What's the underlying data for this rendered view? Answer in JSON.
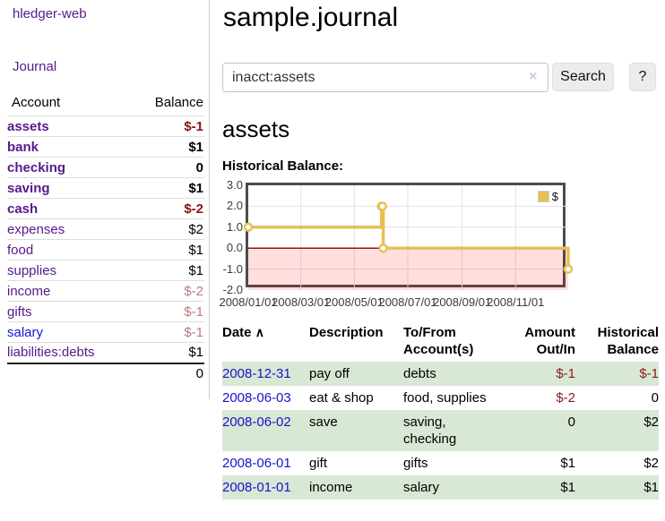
{
  "colors": {
    "link_purple": "#551a8b",
    "link_blue": "#1414d6",
    "negative_strong": "#8b1212",
    "negative_soft": "#bd7b7b",
    "row_stripe_green": "#d8e8d5",
    "chart_series_gold": "#e6c054",
    "chart_negative_region": "rgba(255,0,0,0.13)",
    "chart_zero_line": "#8f1414",
    "chart_grid": "#e2e2e2"
  },
  "sidebar": {
    "brand": "hledger-web",
    "journal_link": "Journal",
    "table": {
      "account_header": "Account",
      "balance_header": "Balance",
      "accounts": [
        {
          "label": "assets",
          "depth": 0,
          "bold": true,
          "balance": "$-1",
          "balance_style": "neg-strong"
        },
        {
          "label": "bank",
          "depth": 1,
          "bold": true,
          "balance": "$1",
          "balance_style": ""
        },
        {
          "label": "checking",
          "depth": 2,
          "bold": true,
          "balance": "0",
          "balance_style": ""
        },
        {
          "label": "saving",
          "depth": 2,
          "bold": true,
          "balance": "$1",
          "balance_style": ""
        },
        {
          "label": "cash",
          "depth": 1,
          "bold": true,
          "balance": "$-2",
          "balance_style": "neg-strong"
        },
        {
          "label": "expenses",
          "depth": 0,
          "bold": false,
          "balance": "$2",
          "balance_style": ""
        },
        {
          "label": "food",
          "depth": 1,
          "bold": false,
          "balance": "$1",
          "balance_style": ""
        },
        {
          "label": "supplies",
          "depth": 1,
          "bold": false,
          "balance": "$1",
          "balance_style": ""
        },
        {
          "label": "income",
          "depth": 0,
          "bold": false,
          "balance": "$-2",
          "balance_style": "neg-soft"
        },
        {
          "label": "gifts",
          "depth": 1,
          "bold": false,
          "balance": "$-1",
          "balance_style": "neg-soft"
        },
        {
          "label": "salary",
          "depth": 1,
          "bold": false,
          "unvisited": true,
          "balance": "$-1",
          "balance_style": "neg-soft"
        },
        {
          "label": "liabilities:debts",
          "depth": 0,
          "bold": false,
          "balance": "$1",
          "balance_style": ""
        }
      ],
      "total": "0"
    }
  },
  "main": {
    "title": "sample.journal",
    "search": {
      "value": "inacct:assets",
      "clear_icon": "×",
      "search_button": "Search",
      "help_button": "?"
    },
    "account_heading": "assets",
    "section_heading": "Historical Balance:"
  },
  "chart_data": {
    "type": "line",
    "style": "step",
    "title": "Historical Balance",
    "x_range": [
      "2008-01-01",
      "2008-12-31"
    ],
    "ylim": [
      -2,
      3
    ],
    "series": [
      {
        "name": "$",
        "color": "#e6c054",
        "marker_fill": "#ffffff",
        "points": [
          [
            "2008-01-01",
            1
          ],
          [
            "2008-06-01",
            2
          ],
          [
            "2008-06-02",
            2
          ],
          [
            "2008-06-03",
            0
          ],
          [
            "2008-12-31",
            -1
          ]
        ]
      }
    ],
    "yticks": [
      {
        "label": "3.0",
        "value": 3
      },
      {
        "label": "2.0",
        "value": 2
      },
      {
        "label": "1.0",
        "value": 1
      },
      {
        "label": "0.0",
        "value": 0
      },
      {
        "label": "-1.0",
        "value": -1
      },
      {
        "label": "-2.0",
        "value": -2
      }
    ],
    "xticks": [
      {
        "label": "2008/01/01",
        "date": "2008-01-01"
      },
      {
        "label": "2008/03/01",
        "date": "2008-03-01"
      },
      {
        "label": "2008/05/01",
        "date": "2008-05-01"
      },
      {
        "label": "2008/07/01",
        "date": "2008-07-01"
      },
      {
        "label": "2008/09/01",
        "date": "2008-09-01"
      },
      {
        "label": "2008/11/01",
        "date": "2008-11-01"
      }
    ],
    "legend": {
      "label": "$",
      "position": "top-right"
    },
    "grid": true,
    "grid_color": "#e2e2e2",
    "negative_region_color": "rgba(255,0,0,0.13)",
    "zero_line_color": "#8f1414"
  },
  "transactions": {
    "sort_icon": "∧",
    "headers": {
      "date": "Date",
      "description": "Description",
      "accounts_line1": "To/From",
      "accounts_line2": "Account(s)",
      "amount_line1": "Amount",
      "amount_line2": "Out/In",
      "balance_line1": "Historical",
      "balance_line2": "Balance"
    },
    "rows": [
      {
        "date": "2008-12-31",
        "description": "pay off",
        "accounts": "debts",
        "amount": "$-1",
        "balance": "$-1",
        "amount_negative": true,
        "balance_negative": true,
        "striped": true
      },
      {
        "date": "2008-06-03",
        "description": "eat & shop",
        "accounts": "food, supplies",
        "amount": "$-2",
        "balance": "0",
        "amount_negative": true,
        "balance_negative": false,
        "striped": false
      },
      {
        "date": "2008-06-02",
        "description": "save",
        "accounts": "saving, checking",
        "amount": "0",
        "balance": "$2",
        "amount_negative": false,
        "balance_negative": false,
        "striped": true
      },
      {
        "date": "2008-06-01",
        "description": "gift",
        "accounts": "gifts",
        "amount": "$1",
        "balance": "$2",
        "amount_negative": false,
        "balance_negative": false,
        "striped": false
      },
      {
        "date": "2008-01-01",
        "description": "income",
        "accounts": "salary",
        "amount": "$1",
        "balance": "$1",
        "amount_negative": false,
        "balance_negative": false,
        "striped": true
      }
    ]
  }
}
